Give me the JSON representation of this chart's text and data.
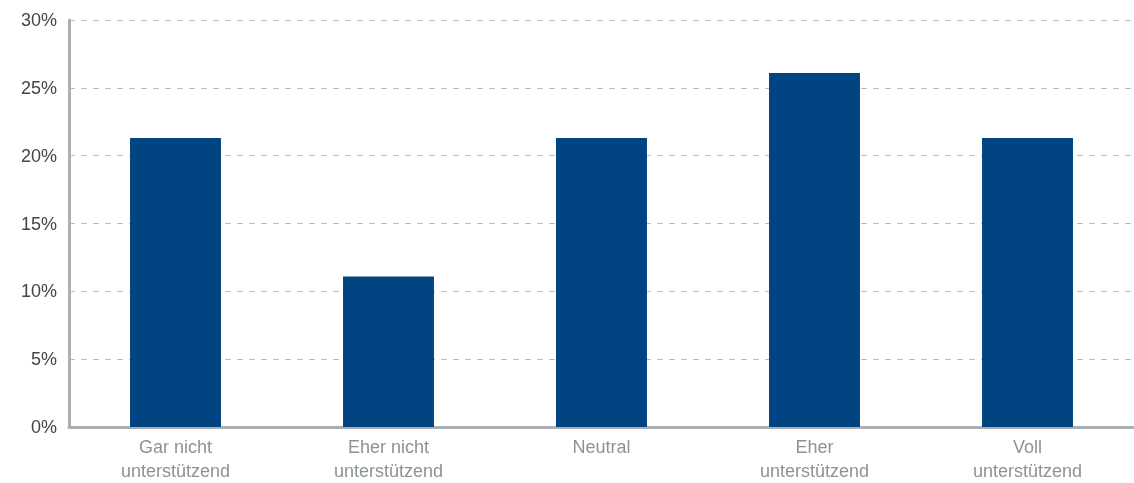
{
  "chart_data": {
    "type": "bar",
    "categories": [
      "Gar nicht\nunterstützend",
      "Eher nicht\nunterstützend",
      "Neutral",
      "Eher\nunterstützend",
      "Voll\nunterstützend"
    ],
    "values": [
      21.3,
      11.1,
      21.3,
      26.1,
      21.3
    ],
    "color": "#004481",
    "ylim": [
      0,
      30
    ],
    "yticks": [
      {
        "value": 0,
        "label": "0%"
      },
      {
        "value": 5,
        "label": "5%"
      },
      {
        "value": 10,
        "label": "10%"
      },
      {
        "value": 15,
        "label": "15%"
      },
      {
        "value": 20,
        "label": "20%"
      },
      {
        "value": 25,
        "label": "25%"
      },
      {
        "value": 30,
        "label": "30%"
      }
    ],
    "grid": "y"
  }
}
